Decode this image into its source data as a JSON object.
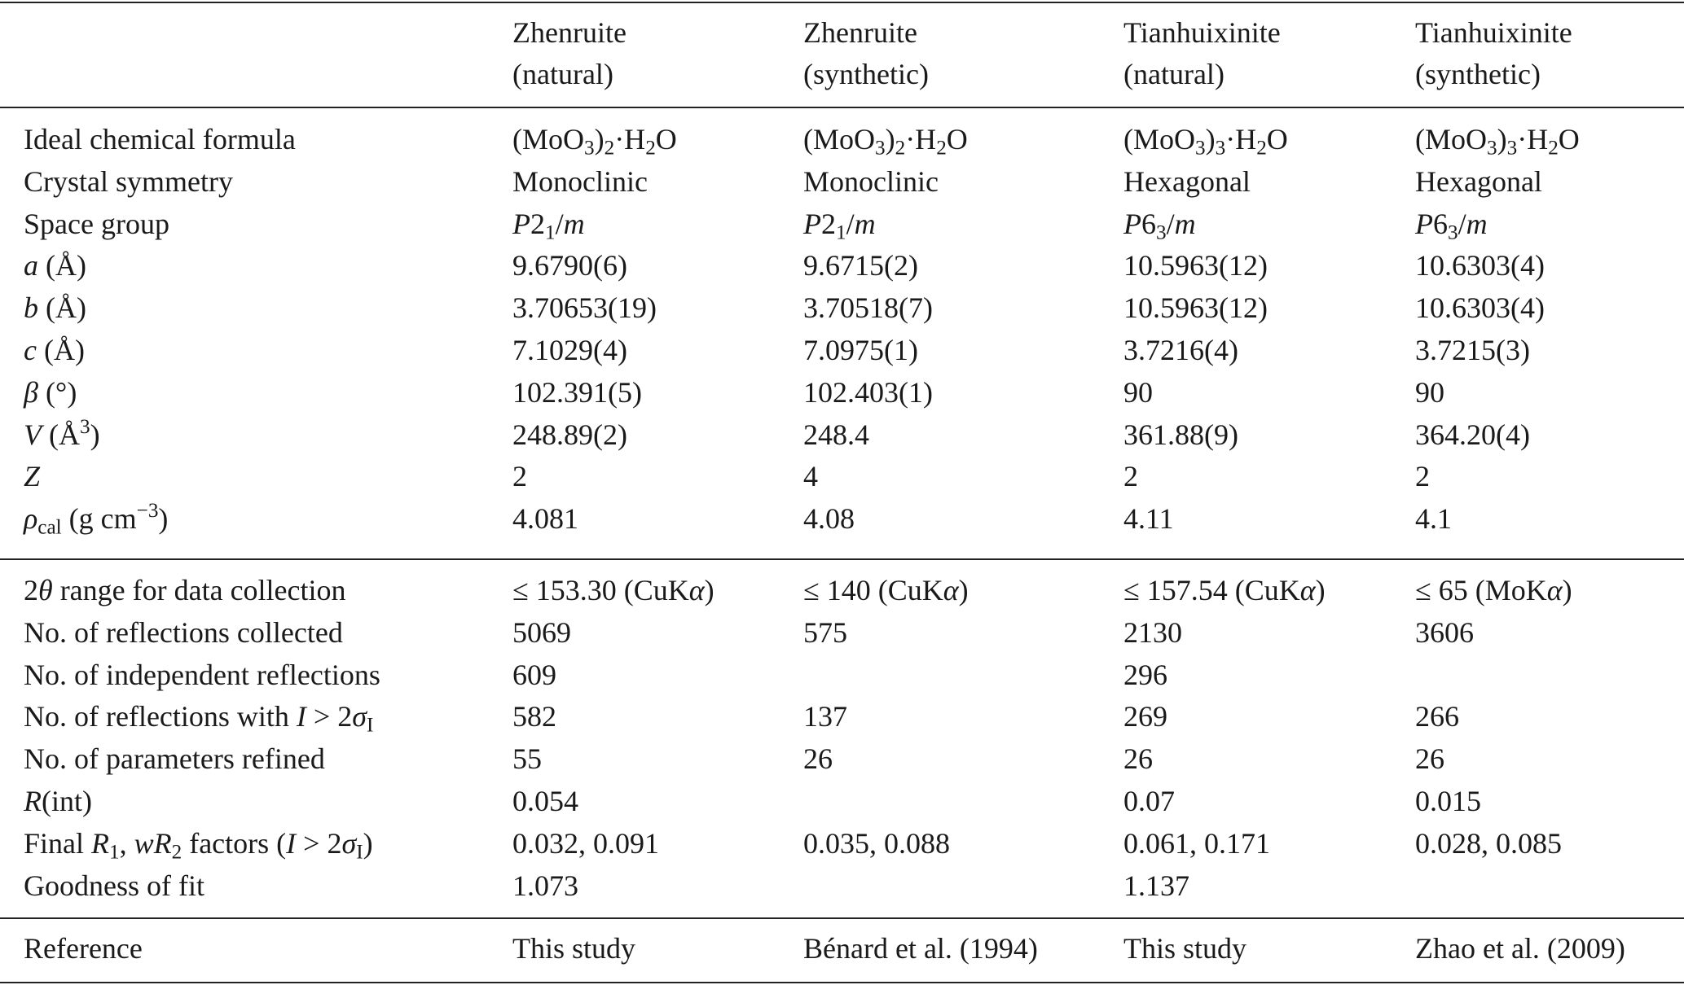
{
  "table": {
    "header": [
      null,
      [
        "Zhenruite",
        "(natural)"
      ],
      [
        "Zhenruite",
        "(synthetic)"
      ],
      [
        "Tianhuixinite",
        "(natural)"
      ],
      [
        "Tianhuixinite",
        "(synthetic)"
      ]
    ],
    "sections": [
      [
        [
          "Ideal chemical formula",
          [
            "(MoO",
            {
              "sub": "3"
            },
            ")",
            {
              "sub": "2"
            },
            "·H",
            {
              "sub": "2"
            },
            "O"
          ],
          [
            "(MoO",
            {
              "sub": "3"
            },
            ")",
            {
              "sub": "2"
            },
            "·H",
            {
              "sub": "2"
            },
            "O"
          ],
          [
            "(MoO",
            {
              "sub": "3"
            },
            ")",
            {
              "sub": "3"
            },
            "·H",
            {
              "sub": "2"
            },
            "O"
          ],
          [
            "(MoO",
            {
              "sub": "3"
            },
            ")",
            {
              "sub": "3"
            },
            "·H",
            {
              "sub": "2"
            },
            "O"
          ]
        ],
        [
          "Crystal symmetry",
          "Monoclinic",
          "Monoclinic",
          "Hexagonal",
          "Hexagonal"
        ],
        [
          "Space group",
          [
            {
              "i": "P"
            },
            "2",
            {
              "sub": "1"
            },
            "/",
            {
              "i": "m"
            }
          ],
          [
            {
              "i": "P"
            },
            "2",
            {
              "sub": "1"
            },
            "/",
            {
              "i": "m"
            }
          ],
          [
            {
              "i": "P"
            },
            "6",
            {
              "sub": "3"
            },
            "/",
            {
              "i": "m"
            }
          ],
          [
            {
              "i": "P"
            },
            "6",
            {
              "sub": "3"
            },
            "/",
            {
              "i": "m"
            }
          ]
        ],
        [
          [
            {
              "i": "a"
            },
            " (Å)"
          ],
          "9.6790(6)",
          "9.6715(2)",
          "10.5963(12)",
          "10.6303(4)"
        ],
        [
          [
            {
              "i": "b"
            },
            " (Å)"
          ],
          "3.70653(19)",
          "3.70518(7)",
          "10.5963(12)",
          "10.6303(4)"
        ],
        [
          [
            {
              "i": "c"
            },
            " (Å)"
          ],
          "7.1029(4)",
          "7.0975(1)",
          "3.7216(4)",
          "3.7215(3)"
        ],
        [
          [
            {
              "i": "β"
            },
            " (°)"
          ],
          "102.391(5)",
          "102.403(1)",
          "90",
          "90"
        ],
        [
          [
            {
              "i": "V"
            },
            " (Å",
            {
              "sup": "3"
            },
            ")"
          ],
          "248.89(2)",
          "248.4",
          "361.88(9)",
          "364.20(4)"
        ],
        [
          [
            {
              "i": "Z"
            }
          ],
          "2",
          "4",
          "2",
          "2"
        ],
        [
          [
            {
              "i": "ρ"
            },
            {
              "sub": "cal"
            },
            " (g cm",
            {
              "sup": "−3"
            },
            ")"
          ],
          "4.081",
          "4.08",
          "4.11",
          "4.1"
        ]
      ],
      [
        [
          [
            "2",
            {
              "i": "θ"
            },
            " range for data collection"
          ],
          [
            "≤ 153.30 (CuK",
            {
              "i": "α"
            },
            ")"
          ],
          [
            "≤ 140 (CuK",
            {
              "i": "α"
            },
            ")"
          ],
          [
            "≤ 157.54 (CuK",
            {
              "i": "α"
            },
            ")"
          ],
          [
            "≤ 65 (MoK",
            {
              "i": "α"
            },
            ")"
          ]
        ],
        [
          "No. of reflections collected",
          "5069",
          "575",
          "2130",
          "3606"
        ],
        [
          "No. of independent reflections",
          "609",
          null,
          "296",
          null
        ],
        [
          [
            "No. of reflections with ",
            {
              "i": "I"
            },
            " > 2",
            {
              "i": "σ"
            },
            {
              "sub": "I"
            }
          ],
          "582",
          "137",
          "269",
          "266"
        ],
        [
          "No. of parameters refined",
          "55",
          "26",
          "26",
          "26"
        ],
        [
          [
            {
              "i": "R"
            },
            "(int)"
          ],
          "0.054",
          null,
          "0.07",
          "0.015"
        ],
        [
          [
            "Final ",
            {
              "i": "R"
            },
            {
              "sub": "1"
            },
            ", ",
            {
              "i": "wR"
            },
            {
              "sub": "2"
            },
            " factors (",
            {
              "i": "I"
            },
            " > 2",
            {
              "i": "σ"
            },
            {
              "sub": "I"
            },
            ")"
          ],
          "0.032, 0.091",
          "0.035, 0.088",
          "0.061, 0.171",
          "0.028, 0.085"
        ],
        [
          "Goodness of fit",
          "1.073",
          null,
          "1.137",
          null
        ]
      ],
      [
        [
          "Reference",
          "This study",
          "Bénard et al. (1994)",
          "This study",
          "Zhao et al. (2009)"
        ]
      ]
    ]
  }
}
